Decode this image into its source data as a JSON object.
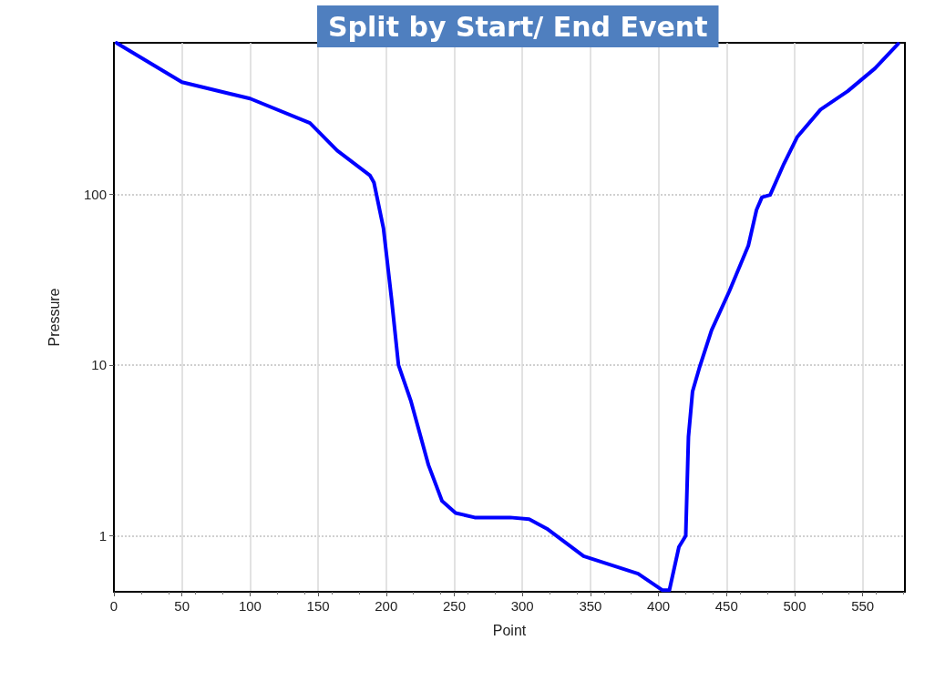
{
  "chart_data": {
    "type": "line",
    "title": "Split by Start/ End Event",
    "xlabel": "Point",
    "ylabel": "Pressure",
    "xlim": [
      0,
      581
    ],
    "xticks": [
      0,
      50,
      100,
      150,
      200,
      250,
      300,
      350,
      400,
      450,
      500,
      550
    ],
    "ylim": [
      0.47,
      770
    ],
    "yticks": [
      1,
      10,
      100
    ],
    "log": "y",
    "grid": true,
    "marker": "none",
    "line_style": "solid",
    "series": [
      {
        "color": "#0000ff",
        "x": [
          2,
          50,
          100,
          144,
          164,
          188,
          191,
          198,
          204,
          209,
          218,
          231,
          241,
          251,
          265,
          291,
          305,
          318,
          345,
          385,
          403,
          408,
          415,
          420,
          422,
          425,
          430,
          439,
          452,
          466,
          472,
          476,
          482,
          492,
          502,
          519,
          539,
          559,
          576
        ],
        "values": [
          768,
          453,
          363,
          261,
          180,
          129,
          117,
          63,
          24,
          10,
          6.2,
          2.6,
          1.6,
          1.36,
          1.28,
          1.28,
          1.25,
          1.1,
          0.76,
          0.6,
          0.48,
          0.48,
          0.86,
          1.0,
          3.8,
          7.0,
          9.6,
          16,
          27,
          50,
          81,
          96,
          99,
          150,
          217,
          313,
          401,
          545,
          759
        ]
      }
    ]
  }
}
